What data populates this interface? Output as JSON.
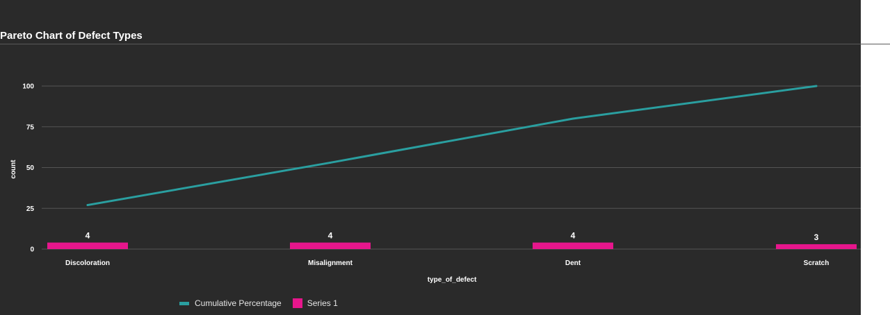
{
  "title": "Pareto Chart of Defect Types",
  "colors": {
    "background": "#2a2a2a",
    "grid": "#555555",
    "bar": "#e6168c",
    "line": "#2a9fa0",
    "text": "#e6e6e6"
  },
  "chart_data": {
    "type": "bar",
    "title": "Pareto Chart of Defect Types",
    "xlabel": "type_of_defect",
    "ylabel": "count",
    "categories": [
      "Discoloration",
      "Misalignment",
      "Dent",
      "Scratch"
    ],
    "ylim": [
      0,
      100
    ],
    "yticks": [
      0,
      25,
      50,
      75,
      100
    ],
    "grid": true,
    "legend_position": "bottom-left",
    "series": [
      {
        "name": "Cumulative Percentage",
        "type": "line",
        "values": [
          27,
          53,
          80,
          100
        ]
      },
      {
        "name": "Series 1",
        "type": "bar",
        "values": [
          4,
          4,
          4,
          3
        ],
        "data_labels": [
          "4",
          "4",
          "4",
          "3"
        ]
      }
    ]
  },
  "legend": {
    "line_label": "Cumulative Percentage",
    "bar_label": "Series 1"
  }
}
